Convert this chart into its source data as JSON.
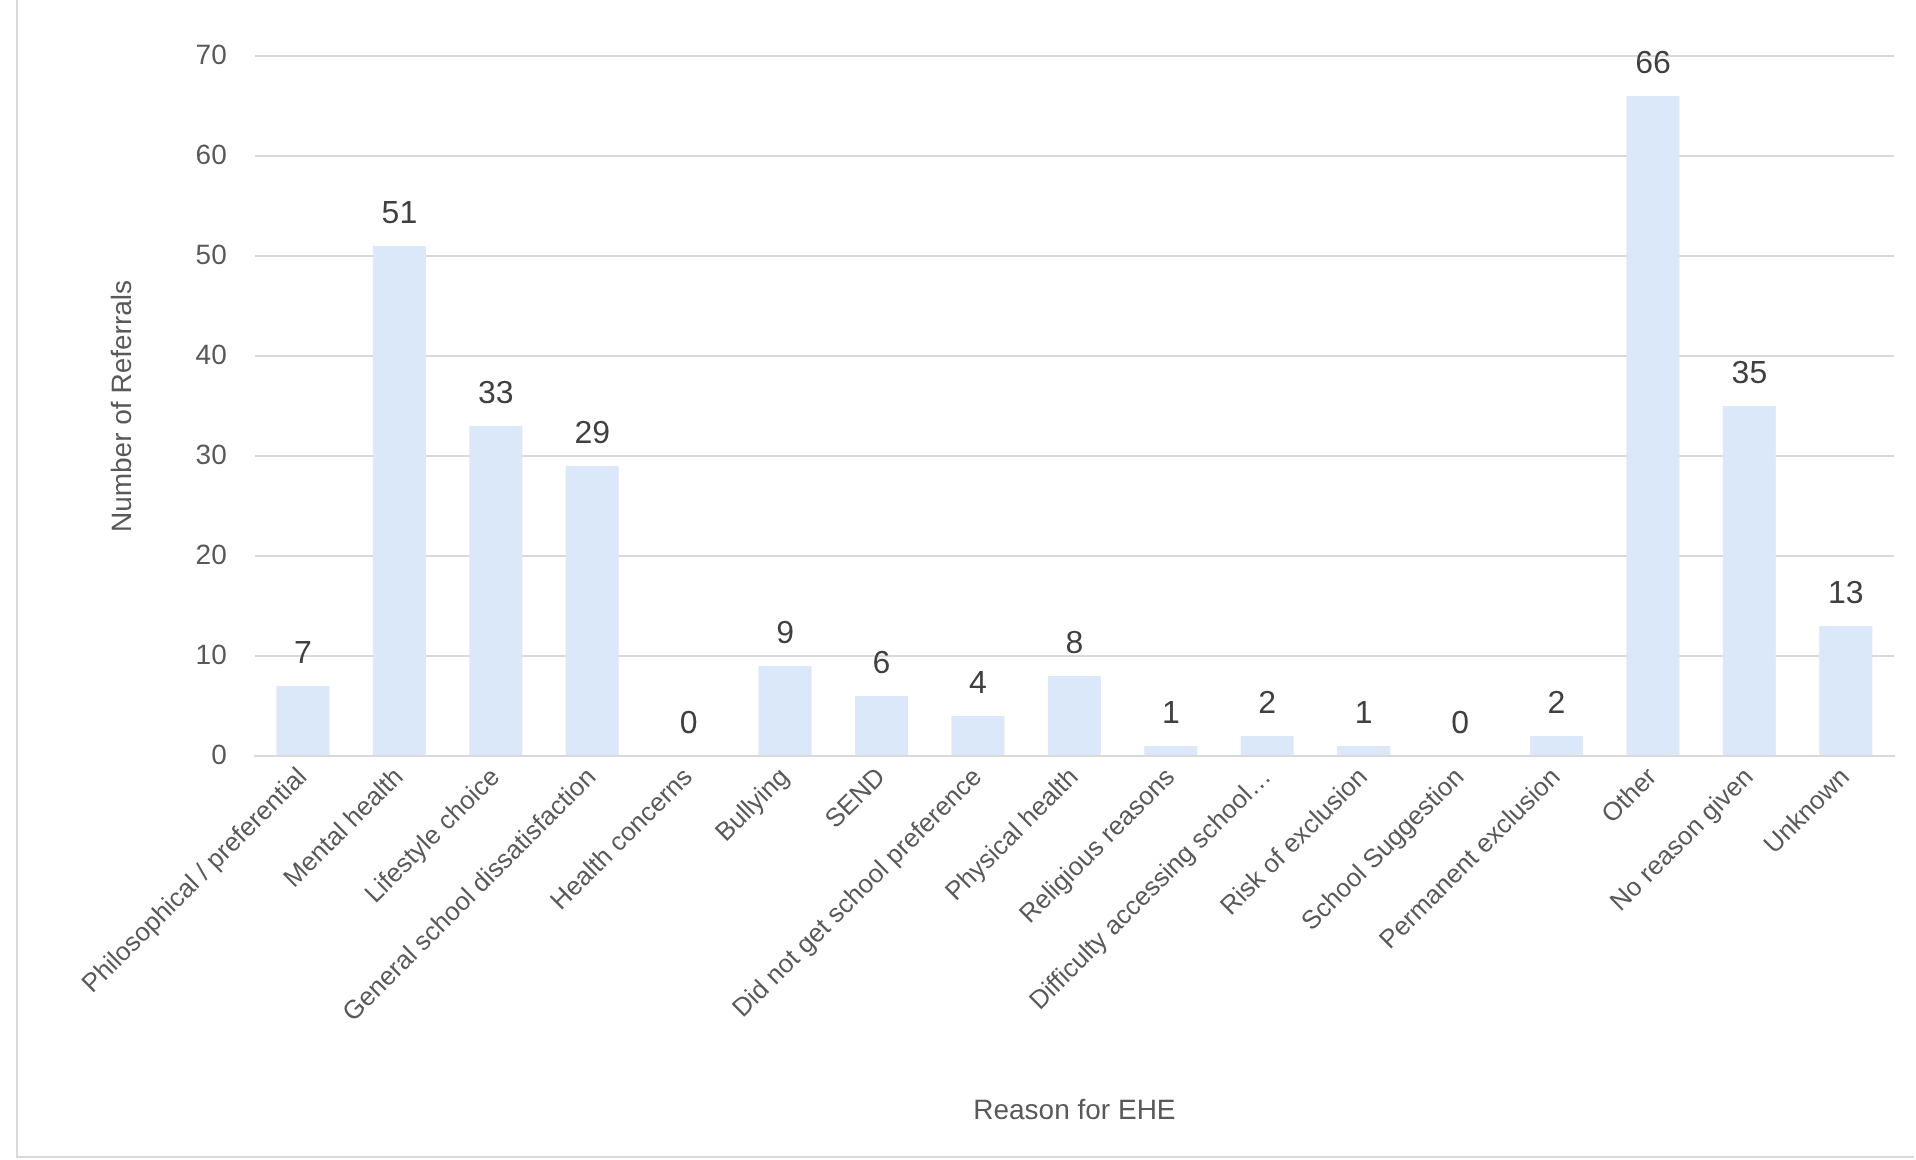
{
  "chart_data": {
    "type": "bar",
    "xlabel": "Reason for EHE",
    "ylabel": "Number of Referrals",
    "categories": [
      "Philosophical / preferential",
      "Mental health",
      "Lifestyle choice",
      "General school dissatisfaction",
      "Health concerns",
      "Bullying",
      "SEND",
      "Did not get school preference",
      "Physical health",
      "Religious reasons",
      "Difficulty accessing school…",
      "Risk of exclusion",
      "School Suggestion",
      "Permanent exclusion",
      "Other",
      "No reason given",
      "Unknown"
    ],
    "values": [
      7,
      51,
      33,
      29,
      0,
      9,
      6,
      4,
      8,
      1,
      2,
      1,
      0,
      2,
      66,
      35,
      13
    ],
    "color": "#dae8fa",
    "ylim": [
      0,
      70
    ],
    "yticks": [
      0,
      10,
      20,
      30,
      40,
      50,
      60,
      70
    ],
    "grid": "y",
    "data_labels": true,
    "legend": false
  }
}
